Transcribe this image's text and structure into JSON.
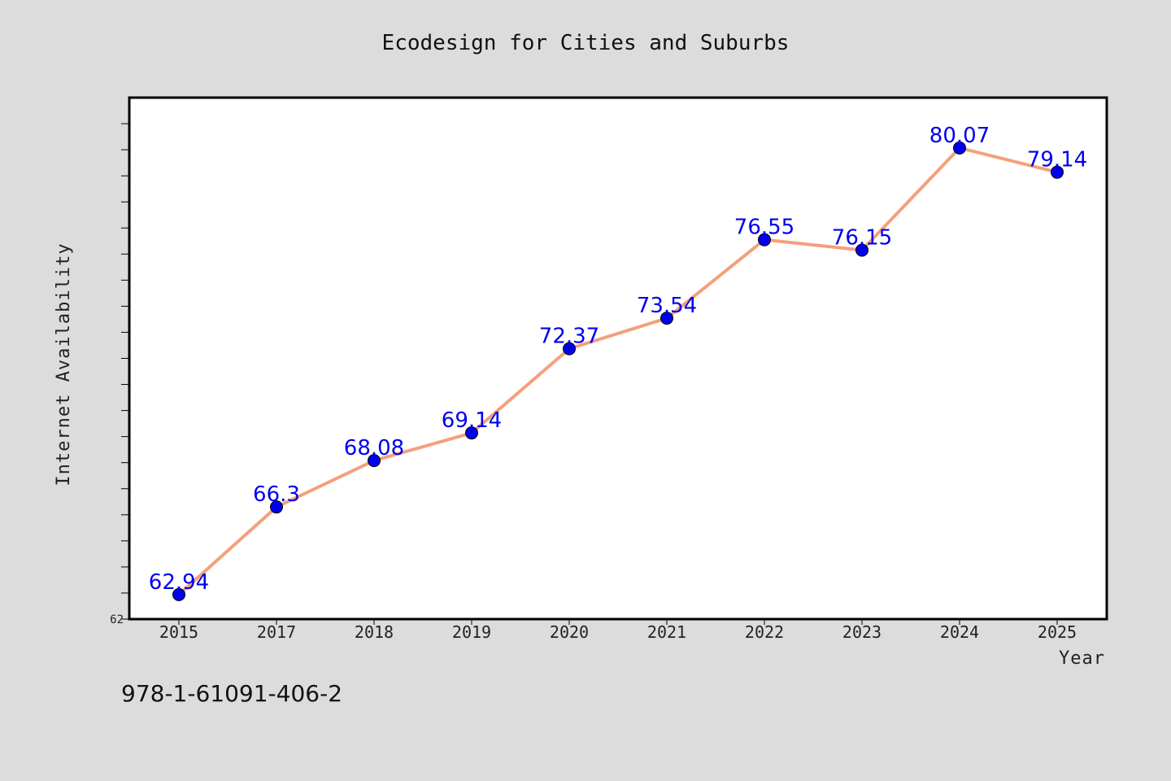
{
  "chart_data": {
    "type": "line",
    "title": "Ecodesign for Cities and Suburbs",
    "xlabel": "Year",
    "ylabel": "Internet Availability",
    "categories": [
      "2015",
      "2017",
      "2018",
      "2019",
      "2020",
      "2021",
      "2022",
      "2023",
      "2024",
      "2025"
    ],
    "series": [
      {
        "values": [
          62.94,
          66.3,
          68.08,
          69.14,
          72.37,
          73.54,
          76.55,
          76.15,
          80.07,
          79.14
        ]
      }
    ],
    "y_tick_labels": [
      "62"
    ],
    "ylim": [
      62,
      82
    ],
    "grid": false,
    "legend": "none",
    "line_color": "#f4a07c",
    "marker_color": "#0000ee",
    "label_color": "#0000ee"
  },
  "footer": {
    "identifier": "978-1-61091-406-2"
  }
}
